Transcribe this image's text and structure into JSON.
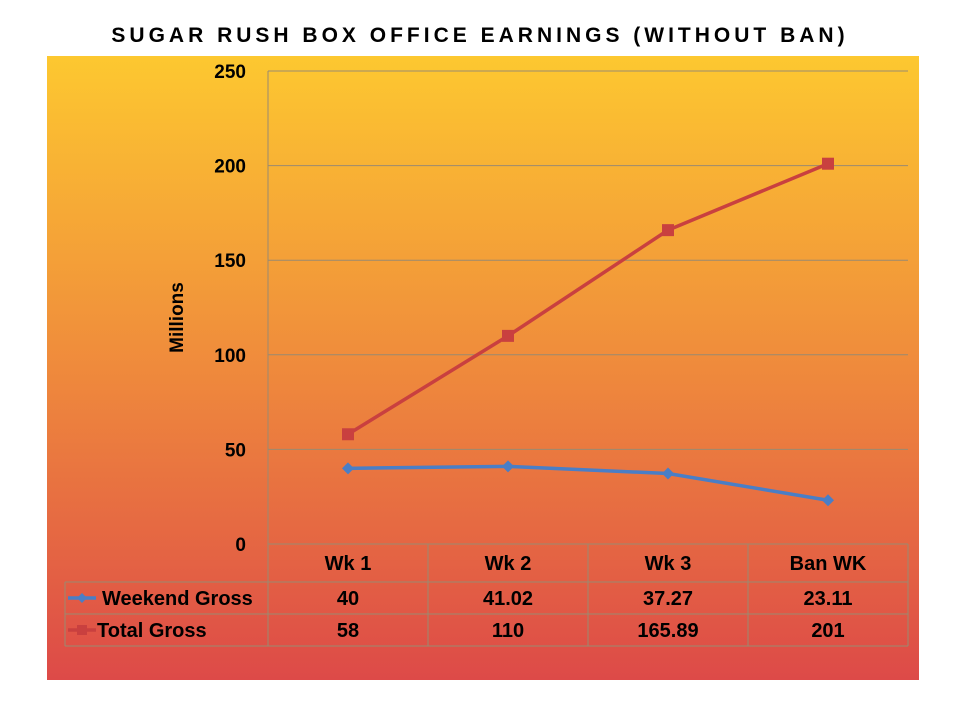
{
  "chart_data": {
    "type": "line",
    "title": "SUGAR RUSH BOX OFFICE EARNINGS (WITHOUT BAN)",
    "ylabel": "Millions",
    "xlabel": "",
    "ylim": [
      0,
      250
    ],
    "yticks": [
      0,
      50,
      100,
      150,
      200,
      250
    ],
    "categories": [
      "Wk 1",
      "Wk 2",
      "Wk 3",
      "Ban WK"
    ],
    "grid": true,
    "legend": "data-table",
    "series": [
      {
        "name": "Weekend Gross",
        "values": [
          40,
          41.02,
          37.27,
          23.11
        ],
        "labels": [
          "40",
          "41.02",
          "37.27",
          "23.11"
        ],
        "color": "#4a7ec6",
        "marker": "diamond"
      },
      {
        "name": "Total Gross",
        "values": [
          58,
          110,
          165.89,
          201
        ],
        "labels": [
          "58",
          "110",
          "165.89",
          "201"
        ],
        "color": "#c9403f",
        "marker": "square"
      }
    ]
  }
}
